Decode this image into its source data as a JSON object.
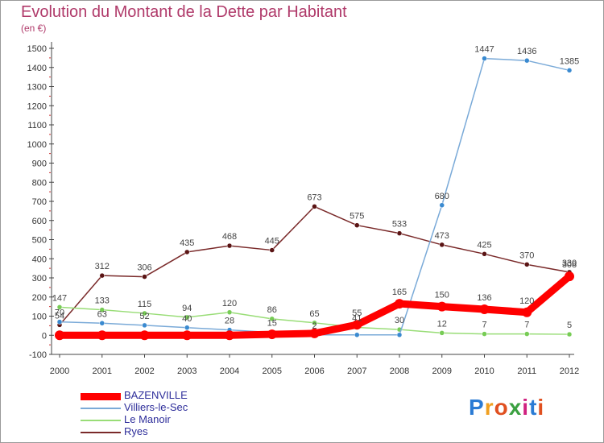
{
  "title": "Evolution du Montant de la Dette par Habitant",
  "unit": "(en €)",
  "logo": {
    "text": "Proxiti",
    "colors": [
      "#2a7bd4",
      "#f0a020",
      "#e05020",
      "#3aa040",
      "#d02080",
      "#2a7bd4",
      "#e05020"
    ]
  },
  "chart_data": {
    "type": "line",
    "x": [
      2000,
      2001,
      2002,
      2003,
      2004,
      2005,
      2006,
      2007,
      2008,
      2009,
      2010,
      2011,
      2012
    ],
    "yticks": [
      -100,
      0,
      100,
      200,
      300,
      400,
      500,
      600,
      700,
      800,
      900,
      1000,
      1100,
      1200,
      1300,
      1400,
      1500
    ],
    "ylim": [
      -100,
      1500
    ],
    "grid": false,
    "legend_position": "bottom-left",
    "series": [
      {
        "name": "Ryes",
        "color": "#7a2a2a",
        "marker": "#5a1414",
        "width": 1.5,
        "values": [
          54,
          312,
          306,
          435,
          468,
          445,
          673,
          575,
          533,
          473,
          425,
          370,
          330
        ],
        "labels": [
          "54",
          "312",
          "306",
          "435",
          "468",
          "445",
          "673",
          "575",
          "533",
          "473",
          "425",
          "370",
          "330"
        ]
      },
      {
        "name": "Le Manoir",
        "color": "#99dd77",
        "marker": "#77cc55",
        "width": 1.5,
        "values": [
          147,
          133,
          115,
          94,
          120,
          86,
          65,
          41,
          30,
          12,
          7,
          7,
          5
        ],
        "labels": [
          "147",
          "133",
          "115",
          "94",
          "120",
          "86",
          "65",
          "41",
          "30",
          "12",
          "7",
          "7",
          "5"
        ]
      },
      {
        "name": "Villiers-le-Sec",
        "color": "#7aaad8",
        "marker": "#3a8ad0",
        "width": 1.5,
        "values": [
          70,
          63,
          52,
          40,
          28,
          15,
          2,
          2,
          2,
          680,
          1447,
          1436,
          1385
        ],
        "labels": [
          "70",
          "63",
          "52",
          "40",
          "28",
          "15",
          "2",
          "",
          "",
          "680",
          "1447",
          "1436",
          "1385"
        ]
      },
      {
        "name": "BAZENVILLE",
        "color": "#ff0000",
        "marker": "#ff0000",
        "width": 9,
        "values": [
          0,
          0,
          0,
          0,
          0,
          5,
          10,
          55,
          165,
          150,
          136,
          120,
          308
        ],
        "labels": [
          "",
          "",
          "",
          "",
          "",
          "",
          "",
          "55",
          "165",
          "150",
          "136",
          "120",
          "308"
        ]
      }
    ],
    "legend_order": [
      "BAZENVILLE",
      "Villiers-le-Sec",
      "Le Manoir",
      "Ryes"
    ]
  }
}
